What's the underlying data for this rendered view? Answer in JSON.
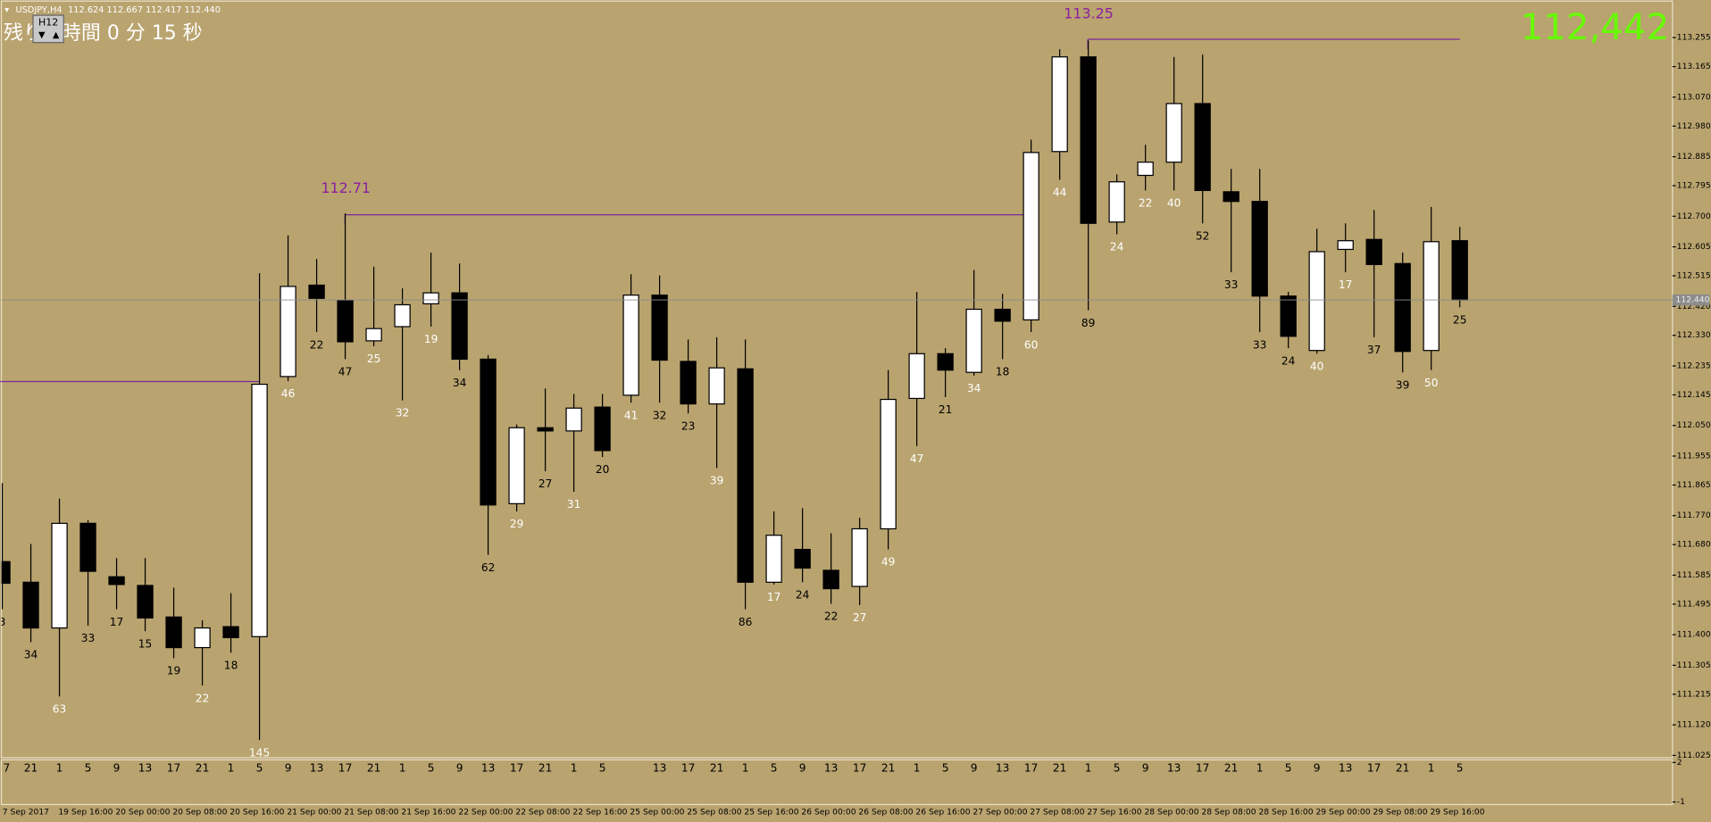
{
  "chart_data": {
    "type": "candlestick",
    "title": "USDJPY,H4",
    "info_line": "112.624 112.667 112.417 112.440",
    "timer": "残り0 時間 0 分 15 秒",
    "button": "H12",
    "bid_display": "112,442",
    "annotations": [
      "112.71",
      "113.25"
    ],
    "current_price": {
      "value": 112.44,
      "label": "112.440"
    },
    "categories": [
      "7",
      "21",
      "1",
      "5",
      "9",
      "13",
      "17",
      "21",
      "1",
      "5",
      "9",
      "13",
      "17",
      "21",
      "1",
      "5",
      "9",
      "13",
      "17",
      "21",
      "1",
      "5",
      null,
      "13",
      "17",
      "21",
      "1",
      "5",
      "9",
      "13",
      "17",
      "21",
      "1",
      "5",
      "9",
      "13",
      "17",
      "21",
      "1",
      "5",
      "9",
      "13",
      "17",
      "21",
      "1",
      "5",
      "9",
      "13",
      "17",
      "21",
      "1",
      "5"
    ],
    "dates": [
      "7 Sep 2017",
      "19 Sep 16:00",
      "20 Sep 00:00",
      "20 Sep 08:00",
      "20 Sep 16:00",
      "21 Sep 00:00",
      "21 Sep 08:00",
      "21 Sep 16:00",
      "22 Sep 00:00",
      "22 Sep 08:00",
      "22 Sep 16:00",
      "25 Sep 00:00",
      "25 Sep 08:00",
      "25 Sep 16:00",
      "26 Sep 00:00",
      "26 Sep 08:00",
      "26 Sep 16:00",
      "27 Sep 00:00",
      "27 Sep 08:00",
      "27 Sep 16:00",
      "28 Sep 00:00",
      "28 Sep 08:00",
      "28 Sep 16:00",
      "29 Sep 00:00",
      "29 Sep 08:00",
      "29 Sep 16:00"
    ],
    "open": [
      111.627,
      111.563,
      111.421,
      111.746,
      111.58,
      111.553,
      111.455,
      111.36,
      111.425,
      111.394,
      112.202,
      112.486,
      112.438,
      112.313,
      112.357,
      112.428,
      112.462,
      112.256,
      111.807,
      112.043,
      112.033,
      112.107,
      112.144,
      112.455,
      112.249,
      112.117,
      112.226,
      111.563,
      111.665,
      111.6,
      111.55,
      111.729,
      112.134,
      112.273,
      112.215,
      112.411,
      112.378,
      112.901,
      113.195,
      112.682,
      112.827,
      112.868,
      113.05,
      112.776,
      112.746,
      112.452,
      112.283,
      112.597,
      112.628,
      112.553,
      112.283,
      112.624
    ],
    "high": [
      111.871,
      111.682,
      111.823,
      111.756,
      111.638,
      111.638,
      111.546,
      111.445,
      111.529,
      112.523,
      112.641,
      112.567,
      112.709,
      112.543,
      112.476,
      112.587,
      112.553,
      112.269,
      112.053,
      112.165,
      112.148,
      112.148,
      112.52,
      112.516,
      112.317,
      112.324,
      112.317,
      111.783,
      111.793,
      111.715,
      111.763,
      112.222,
      112.465,
      112.29,
      112.533,
      112.459,
      112.938,
      113.219,
      113.246,
      112.83,
      112.922,
      113.195,
      113.202,
      112.847,
      112.847,
      112.465,
      112.661,
      112.678,
      112.719,
      112.587,
      112.729,
      112.667
    ],
    "low": [
      111.479,
      111.377,
      111.208,
      111.428,
      111.479,
      111.411,
      111.327,
      111.242,
      111.344,
      111.073,
      112.188,
      112.34,
      112.256,
      112.296,
      112.128,
      112.357,
      112.222,
      111.648,
      111.783,
      111.908,
      111.844,
      111.952,
      112.121,
      112.121,
      112.087,
      111.918,
      111.479,
      111.556,
      111.563,
      111.496,
      111.492,
      111.665,
      111.986,
      112.138,
      112.205,
      112.256,
      112.34,
      112.813,
      112.408,
      112.644,
      112.78,
      112.78,
      112.678,
      112.526,
      112.34,
      112.29,
      112.273,
      112.526,
      112.324,
      112.215,
      112.222,
      112.417
    ],
    "close": [
      111.56,
      111.421,
      111.746,
      111.597,
      111.556,
      111.452,
      111.36,
      111.421,
      111.391,
      112.178,
      112.482,
      112.445,
      112.31,
      112.351,
      112.425,
      112.462,
      112.256,
      111.803,
      112.043,
      112.033,
      112.104,
      111.972,
      112.455,
      112.253,
      112.117,
      112.229,
      111.563,
      111.709,
      111.607,
      111.543,
      111.729,
      112.131,
      112.273,
      112.222,
      112.411,
      112.374,
      112.898,
      113.195,
      112.678,
      112.807,
      112.868,
      113.05,
      112.78,
      112.746,
      112.452,
      112.327,
      112.59,
      112.624,
      112.55,
      112.28,
      112.621,
      112.44
    ],
    "counts": [
      3,
      34,
      63,
      33,
      17,
      15,
      19,
      22,
      18,
      145,
      46,
      22,
      47,
      25,
      32,
      19,
      34,
      62,
      29,
      27,
      31,
      20,
      41,
      32,
      23,
      39,
      86,
      17,
      24,
      22,
      27,
      49,
      47,
      21,
      34,
      18,
      60,
      44,
      89,
      24,
      22,
      40,
      52,
      33,
      33,
      24,
      40,
      17,
      37,
      39,
      50,
      25
    ],
    "bull_color": "#ffffff",
    "bear_color": "#000000",
    "ylim": [
      111.018,
      113.365
    ],
    "yticks": [
      113.255,
      113.165,
      {
        "value": 113.07,
        "label": "113.070"
      },
      {
        "value": 112.98,
        "label": "112.980"
      },
      112.885,
      112.795,
      {
        "value": 112.7,
        "label": "112.700"
      },
      112.605,
      112.515,
      {
        "value": 112.42,
        "label": "112.420"
      },
      {
        "value": 112.33,
        "label": "112.330"
      },
      112.235,
      112.145,
      {
        "value": 112.05,
        "label": "112.050"
      },
      111.955,
      111.865,
      {
        "value": 111.77,
        "label": "111.770"
      },
      {
        "value": 111.68,
        "label": "111.680"
      },
      111.585,
      111.495,
      {
        "value": 111.4,
        "label": "111.400"
      },
      111.305,
      111.215,
      {
        "value": 111.12,
        "label": "111.120"
      },
      111.025
    ],
    "sub_ylim": [
      -1.2,
      2.2
    ],
    "sub_yticks": [
      2,
      -1
    ]
  }
}
